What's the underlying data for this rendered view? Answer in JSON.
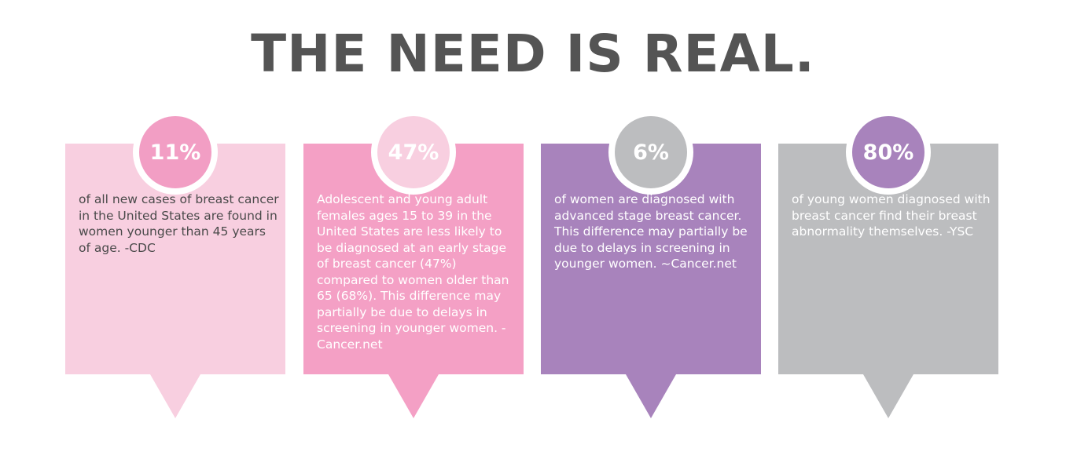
{
  "headline": "THE NEED IS REAL.",
  "cards": [
    {
      "stat": "11%",
      "text": "of all new cases of breast cancer in the United States are found in women younger than 45 years of age. -CDC",
      "colors": {
        "card": "#f8cfe0",
        "badge": "#f29ec4",
        "text": "#4a4a4a"
      }
    },
    {
      "stat": "47%",
      "text": "Adolescent and young adult females ages 15 to 39 in the United States are less likely to be diagnosed at an early stage of breast cancer (47%) compared to women older than 65 (68%). This difference may partially be due to delays in screening in younger women. -Cancer.net",
      "colors": {
        "card": "#f4a0c5",
        "badge": "#f8cfe0",
        "text": "#ffffff"
      }
    },
    {
      "stat": "6%",
      "text": "of women are diagnosed with advanced stage breast cancer. This difference may partially be due to delays in screening in younger women. ~Cancer.net",
      "colors": {
        "card": "#a883bc",
        "badge": "#bcbdbf",
        "text": "#ffffff"
      }
    },
    {
      "stat": "80%",
      "text": "of young women diagnosed with breast cancer find their breast abnormality themselves. -YSC",
      "colors": {
        "card": "#bcbdbf",
        "badge": "#a883bc",
        "text": "#ffffff"
      }
    }
  ]
}
